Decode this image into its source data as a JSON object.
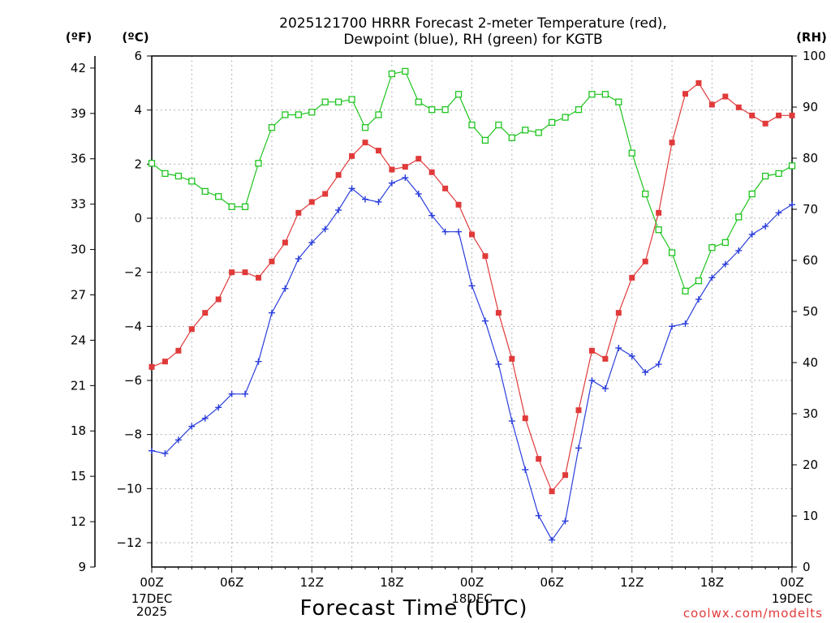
{
  "page": {
    "title_line1": "2025121700 HRRR Forecast 2-meter Temperature (red),",
    "title_line2": "Dewpoint (blue), RH (green) for KGTB",
    "credit": "coolwx.com/modelts"
  },
  "chart_data": {
    "type": "line",
    "title": "2025121700 HRRR Forecast 2-meter Temperature (red), Dewpoint (blue), RH (green) for KGTB",
    "xlabel": "Forecast Time (UTC)",
    "x_hours": [
      0,
      1,
      2,
      3,
      4,
      5,
      6,
      7,
      8,
      9,
      10,
      11,
      12,
      13,
      14,
      15,
      16,
      17,
      18,
      19,
      20,
      21,
      22,
      23,
      24,
      25,
      26,
      27,
      28,
      29,
      30,
      31,
      32,
      33,
      34,
      35,
      36,
      37,
      38,
      39,
      40,
      41,
      42,
      43,
      44,
      45,
      46,
      47,
      48
    ],
    "x_range_hours": [
      0,
      48
    ],
    "x_ticks": [
      {
        "hour": 0,
        "label": "00Z",
        "sub1": "17DEC",
        "sub2": "2025"
      },
      {
        "hour": 6,
        "label": "06Z",
        "sub1": "",
        "sub2": ""
      },
      {
        "hour": 12,
        "label": "12Z",
        "sub1": "",
        "sub2": ""
      },
      {
        "hour": 18,
        "label": "18Z",
        "sub1": "",
        "sub2": ""
      },
      {
        "hour": 24,
        "label": "00Z",
        "sub1": "18DEC",
        "sub2": ""
      },
      {
        "hour": 30,
        "label": "06Z",
        "sub1": "",
        "sub2": ""
      },
      {
        "hour": 36,
        "label": "12Z",
        "sub1": "",
        "sub2": ""
      },
      {
        "hour": 42,
        "label": "18Z",
        "sub1": "",
        "sub2": ""
      },
      {
        "hour": 48,
        "label": "00Z",
        "sub1": "19DEC",
        "sub2": ""
      }
    ],
    "axes": {
      "celsius": {
        "unit_label": "(ºC)",
        "range": [
          -12.9,
          6.0
        ],
        "ticks": [
          6,
          4,
          2,
          0,
          -2,
          -4,
          -6,
          -8,
          -10,
          -12
        ]
      },
      "fahrenheit": {
        "unit_label": "(ºF)",
        "range": [
          9,
          42.8
        ],
        "ticks": [
          42,
          39,
          36,
          33,
          30,
          27,
          24,
          21,
          18,
          15,
          12,
          9
        ]
      },
      "rh": {
        "unit_label": "(RH)",
        "range": [
          0,
          100
        ],
        "ticks": [
          100,
          90,
          80,
          70,
          60,
          50,
          40,
          30,
          20,
          10,
          0
        ]
      }
    },
    "grid": true,
    "series": [
      {
        "name": "Temperature",
        "color": "#e03a3a",
        "axis": "celsius",
        "marker": "filled-square",
        "values": [
          -5.5,
          -5.3,
          -4.9,
          -4.1,
          -3.5,
          -3.0,
          -2.0,
          -2.0,
          -2.2,
          -1.6,
          -0.9,
          0.2,
          0.6,
          0.9,
          1.6,
          2.3,
          2.8,
          2.5,
          1.8,
          1.9,
          2.2,
          1.7,
          1.1,
          0.5,
          -0.6,
          -1.4,
          -3.5,
          -5.2,
          -7.4,
          -8.9,
          -10.1,
          -9.5,
          -7.1,
          -4.9,
          -5.2,
          -3.5,
          -2.2,
          -1.6,
          0.2,
          2.8,
          4.6,
          5.0,
          4.2,
          4.5,
          4.1,
          3.8,
          3.5,
          3.8,
          3.8
        ]
      },
      {
        "name": "Dewpoint",
        "color": "#2a3ddc",
        "axis": "celsius",
        "marker": "plus",
        "values": [
          -8.6,
          -8.7,
          -8.2,
          -7.7,
          -7.4,
          -7.0,
          -6.5,
          -6.5,
          -5.3,
          -3.5,
          -2.6,
          -1.5,
          -0.9,
          -0.4,
          0.3,
          1.1,
          0.7,
          0.6,
          1.3,
          1.5,
          0.9,
          0.1,
          -0.5,
          -0.5,
          -2.5,
          -3.8,
          -5.4,
          -7.5,
          -9.3,
          -11.0,
          -11.9,
          -11.2,
          -8.5,
          -6.0,
          -6.3,
          -4.8,
          -5.1,
          -5.7,
          -5.4,
          -4.0,
          -3.9,
          -3.0,
          -2.2,
          -1.7,
          -1.2,
          -0.6,
          -0.3,
          0.2,
          0.5
        ]
      },
      {
        "name": "RH",
        "color": "#1fc41f",
        "axis": "rh",
        "marker": "open-square",
        "values": [
          79,
          77,
          76.5,
          75.5,
          73.5,
          72.5,
          70.5,
          70.5,
          79,
          86,
          88.5,
          88.5,
          89,
          91,
          91,
          91.5,
          86,
          88.5,
          96.5,
          97,
          91,
          89.5,
          89.5,
          92.5,
          86.5,
          83.5,
          86.5,
          84,
          85.5,
          85,
          87,
          88,
          89.5,
          92.5,
          92.5,
          91,
          81,
          73,
          66,
          61.5,
          54,
          56,
          62.5,
          63.5,
          68.5,
          73,
          76.5,
          77,
          78.5
        ]
      }
    ]
  }
}
